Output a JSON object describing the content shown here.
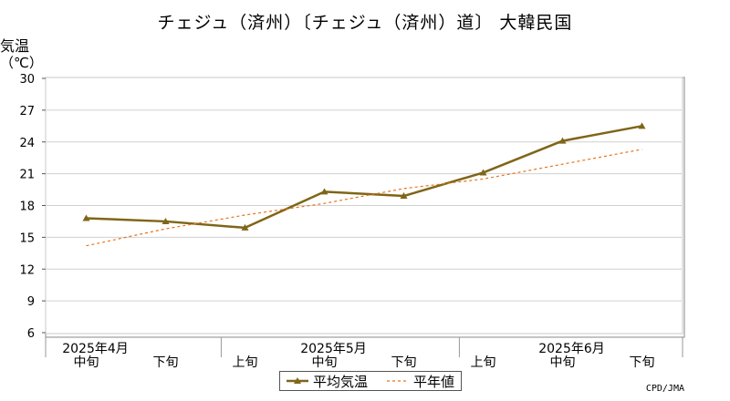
{
  "chart_data": {
    "type": "line",
    "title": "チェジュ（済州）〔チェジュ（済州）道〕 大韓民国",
    "ylabel": "気温",
    "yunit": "（℃）",
    "ylim": [
      6,
      30
    ],
    "yticks": [
      6,
      9,
      12,
      15,
      18,
      21,
      24,
      27,
      30
    ],
    "grid": true,
    "categories": [
      "中旬",
      "下旬",
      "上旬",
      "中旬",
      "下旬",
      "上旬",
      "中旬",
      "下旬"
    ],
    "month_labels": [
      {
        "label": "2025年4月",
        "index": 0
      },
      {
        "label": "2025年5月",
        "index": 3
      },
      {
        "label": "2025年6月",
        "index": 6
      }
    ],
    "series": [
      {
        "name": "平均気温",
        "color": "#7f6518",
        "style": "solid-triangle",
        "values": [
          16.8,
          16.5,
          15.9,
          19.3,
          18.9,
          21.1,
          24.1,
          25.5
        ]
      },
      {
        "name": "平年値",
        "color": "#e8731a",
        "style": "dashed",
        "values": [
          14.2,
          15.8,
          17.1,
          18.2,
          19.6,
          20.5,
          21.9,
          23.3
        ]
      }
    ],
    "legend_position": "bottom"
  },
  "credit": "CPD/JMA"
}
